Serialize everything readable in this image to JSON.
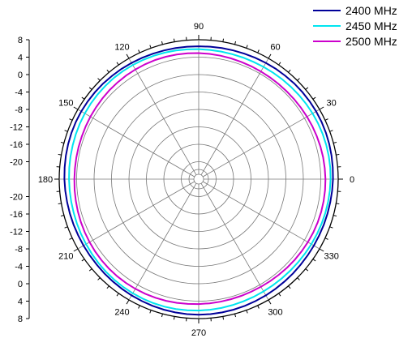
{
  "chart_data": {
    "type": "polar-line",
    "title": "",
    "angle_ticks": [
      "0",
      "30",
      "60",
      "90",
      "120",
      "150",
      "180",
      "210",
      "240",
      "270",
      "300",
      "330"
    ],
    "radial_tick_labels_left": [
      "8",
      "4",
      "0",
      "-4",
      "-8",
      "-12",
      "-16",
      "-20",
      "-20",
      "-16",
      "-12",
      "-8",
      "-4",
      "0",
      "4",
      "8"
    ],
    "r_range": [
      -24,
      8
    ],
    "rings": [
      -20,
      -16,
      -12,
      -8,
      -4,
      0,
      4
    ],
    "grid": true,
    "legend_position": "top-right",
    "series": [
      {
        "name": "2400 MHz",
        "color": "#000099",
        "level": 6.8,
        "ripple": 0.3
      },
      {
        "name": "2450 MHz",
        "color": "#00e5f0",
        "level": 6.0,
        "ripple": 0.3
      },
      {
        "name": "2500 MHz",
        "color": "#cc00cc",
        "level": 4.8,
        "ripple": 0.3
      }
    ]
  }
}
